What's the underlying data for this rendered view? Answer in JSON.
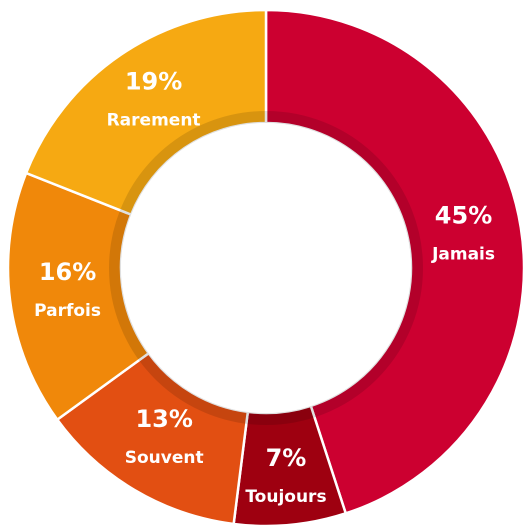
{
  "chart_data": {
    "type": "donut",
    "categories": [
      "Jamais",
      "Toujours",
      "Souvent",
      "Parfois",
      "Rarement"
    ],
    "values": [
      45,
      7,
      13,
      16,
      19
    ],
    "value_labels": [
      "45%",
      "7%",
      "13%",
      "16%",
      "19%"
    ],
    "colors": [
      "#cc0030",
      "#9e0010",
      "#e24f12",
      "#f0880a",
      "#f6a912"
    ]
  }
}
